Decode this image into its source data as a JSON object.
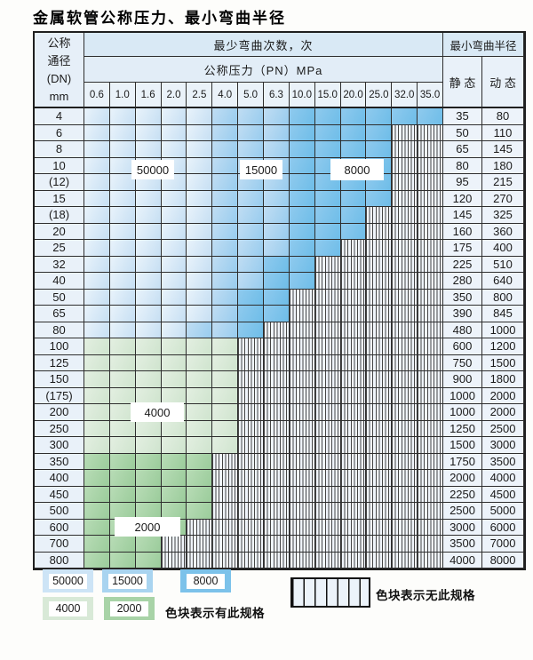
{
  "title": "金属软管公称压力、最小弯曲半径",
  "table": {
    "header": {
      "dn_lines": [
        "公称",
        "通径",
        "(DN)",
        "mm"
      ],
      "bend_cycles_label": "最少弯曲次数，次",
      "pressure_label": "公称压力（PN）MPa",
      "min_bend_radius_label": "最小弯曲半径",
      "static_label": "静 态",
      "dynamic_label": "动 态",
      "pressure_columns": [
        "0.6",
        "1.0",
        "1.6",
        "2.0",
        "2.5",
        "4.0",
        "5.0",
        "6.3",
        "10.0",
        "15.0",
        "20.0",
        "25.0",
        "32.0",
        "35.0"
      ]
    },
    "cell_code_legend": {
      "L": "50000次-浅蓝",
      "M": "15000次-中蓝",
      "D": "8000次-深蓝",
      "G": "4000次-浅绿",
      "E": "2000次-绿",
      "X": "无此规格-条纹"
    },
    "rows": [
      {
        "dn": "4",
        "cells": "LLLLLMMMDDDDDD",
        "static": "35",
        "dynamic": "80"
      },
      {
        "dn": "6",
        "cells": "LLLLLMMMDDDDXX",
        "static": "50",
        "dynamic": "110"
      },
      {
        "dn": "8",
        "cells": "LLLLLMMMDDDDXX",
        "static": "65",
        "dynamic": "145"
      },
      {
        "dn": "10",
        "cells": "LLLLLMMMDDDDXX",
        "static": "80",
        "dynamic": "180"
      },
      {
        "dn": "(12)",
        "cells": "LLLLLMMMDDDDXX",
        "static": "95",
        "dynamic": "215"
      },
      {
        "dn": "15",
        "cells": "LLLLLMMMDDDDXX",
        "static": "120",
        "dynamic": "270"
      },
      {
        "dn": "(18)",
        "cells": "LLLLLMMMDDDXXX",
        "static": "145",
        "dynamic": "325"
      },
      {
        "dn": "20",
        "cells": "LLLLLMMMDDDXXX",
        "static": "160",
        "dynamic": "360"
      },
      {
        "dn": "25",
        "cells": "LLLLLMMMDDXXXX",
        "static": "175",
        "dynamic": "400"
      },
      {
        "dn": "32",
        "cells": "LLLLLMMDDXXXXX",
        "static": "225",
        "dynamic": "510"
      },
      {
        "dn": "40",
        "cells": "LLLLLMMDDXXXXX",
        "static": "280",
        "dynamic": "640"
      },
      {
        "dn": "50",
        "cells": "LLLLLMDDXXXXXX",
        "static": "350",
        "dynamic": "800"
      },
      {
        "dn": "65",
        "cells": "LLLLLMDDXXXXXX",
        "static": "390",
        "dynamic": "845"
      },
      {
        "dn": "80",
        "cells": "LLLLMMDXXXXXXX",
        "static": "480",
        "dynamic": "1000"
      },
      {
        "dn": "100",
        "cells": "GGGGGGXXXXXXXX",
        "static": "600",
        "dynamic": "1200"
      },
      {
        "dn": "125",
        "cells": "GGGGGGXXXXXXXX",
        "static": "750",
        "dynamic": "1500"
      },
      {
        "dn": "150",
        "cells": "GGGGGGXXXXXXXX",
        "static": "900",
        "dynamic": "1800"
      },
      {
        "dn": "(175)",
        "cells": "GGGGGGXXXXXXXX",
        "static": "1000",
        "dynamic": "2000"
      },
      {
        "dn": "200",
        "cells": "GGGGGGXXXXXXXX",
        "static": "1000",
        "dynamic": "2000"
      },
      {
        "dn": "250",
        "cells": "GGGGGGXXXXXXXX",
        "static": "1250",
        "dynamic": "2500"
      },
      {
        "dn": "300",
        "cells": "GGGGGGXXXXXXXX",
        "static": "1500",
        "dynamic": "3000"
      },
      {
        "dn": "350",
        "cells": "EEEEEXXXXXXXXX",
        "static": "1750",
        "dynamic": "3500"
      },
      {
        "dn": "400",
        "cells": "EEEEEXXXXXXXXX",
        "static": "2000",
        "dynamic": "4000"
      },
      {
        "dn": "450",
        "cells": "EEEEEXXXXXXXXX",
        "static": "2250",
        "dynamic": "4500"
      },
      {
        "dn": "500",
        "cells": "EEEEEXXXXXXXXX",
        "static": "2500",
        "dynamic": "5000"
      },
      {
        "dn": "600",
        "cells": "EEEEXXXXXXXXXX",
        "static": "3000",
        "dynamic": "6000"
      },
      {
        "dn": "700",
        "cells": "EEEXXXXXXXXXXX",
        "static": "3500",
        "dynamic": "7000"
      },
      {
        "dn": "800",
        "cells": "EEEXXXXXXXXXXX",
        "static": "4000",
        "dynamic": "8000"
      }
    ]
  },
  "overlays": [
    {
      "text": "50000"
    },
    {
      "text": "15000"
    },
    {
      "text": "8000"
    },
    {
      "text": "4000"
    },
    {
      "text": "2000"
    }
  ],
  "legend": {
    "swatches": [
      {
        "value": "50000",
        "color": "#cde4f6"
      },
      {
        "value": "15000",
        "color": "#a9d4f0"
      },
      {
        "value": "8000",
        "color": "#7cc2ea"
      },
      {
        "value": "4000",
        "color": "#d8e9d7"
      },
      {
        "value": "2000",
        "color": "#a8d3a7"
      }
    ],
    "has_spec_text": "色块表示有此规格",
    "no_spec_text": "色块表示无此规格"
  },
  "colors": {
    "blue_50000": "#cde4f6",
    "blue_15000": "#a9d4f0",
    "blue_8000": "#7cc2ea",
    "green_4000": "#d8e9d7",
    "green_2000": "#a8d3a7",
    "no_spec_bg": "#f0f5fb",
    "grid_line": "#2e2e2e"
  }
}
